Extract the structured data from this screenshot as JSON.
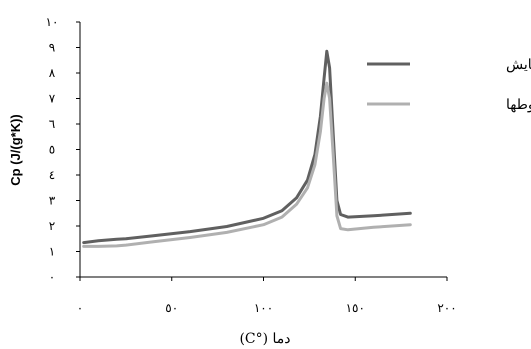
{
  "chart_data": {
    "type": "line",
    "title": "",
    "xlabel": "دما (°C)",
    "ylabel": "Cp (J/(g*K))",
    "xlim": [
      0,
      200
    ],
    "ylim": [
      0,
      10
    ],
    "x_ticks": [
      0,
      50,
      100,
      150,
      200
    ],
    "x_tick_labels": [
      "٠",
      "٥٠",
      "١٠٠",
      "١٥٠",
      "٢٠٠"
    ],
    "y_ticks": [
      0,
      1,
      2,
      3,
      4,
      5,
      6,
      7,
      8,
      9,
      10
    ],
    "y_tick_labels": [
      "٠",
      "١",
      "٢",
      "٣",
      "٤",
      "٥",
      "٦",
      "٧",
      "٨",
      "٩",
      "١٠"
    ],
    "grid": false,
    "legend_position": "top-right",
    "series": [
      {
        "name": "آزمایش",
        "color": "#606060",
        "x": [
          2,
          10,
          20,
          25,
          40,
          60,
          80,
          100,
          110,
          118,
          124,
          128,
          131,
          133,
          134.5,
          136,
          138,
          140,
          142,
          146,
          160,
          180
        ],
        "y": [
          1.35,
          1.42,
          1.48,
          1.5,
          1.62,
          1.78,
          1.98,
          2.3,
          2.6,
          3.1,
          3.8,
          4.8,
          6.3,
          7.8,
          8.85,
          8.2,
          5.6,
          3.0,
          2.45,
          2.35,
          2.4,
          2.5
        ]
      },
      {
        "name": "قانون مخلوطها",
        "color": "#b0b0b0",
        "x": [
          2,
          10,
          20,
          25,
          40,
          60,
          80,
          100,
          110,
          118,
          124,
          128,
          131,
          133,
          134.5,
          136,
          138,
          140,
          142,
          146,
          160,
          180
        ],
        "y": [
          1.2,
          1.2,
          1.22,
          1.25,
          1.38,
          1.55,
          1.75,
          2.05,
          2.35,
          2.85,
          3.5,
          4.4,
          5.7,
          7.0,
          7.6,
          7.0,
          4.8,
          2.4,
          1.9,
          1.85,
          1.95,
          2.05
        ]
      }
    ]
  }
}
